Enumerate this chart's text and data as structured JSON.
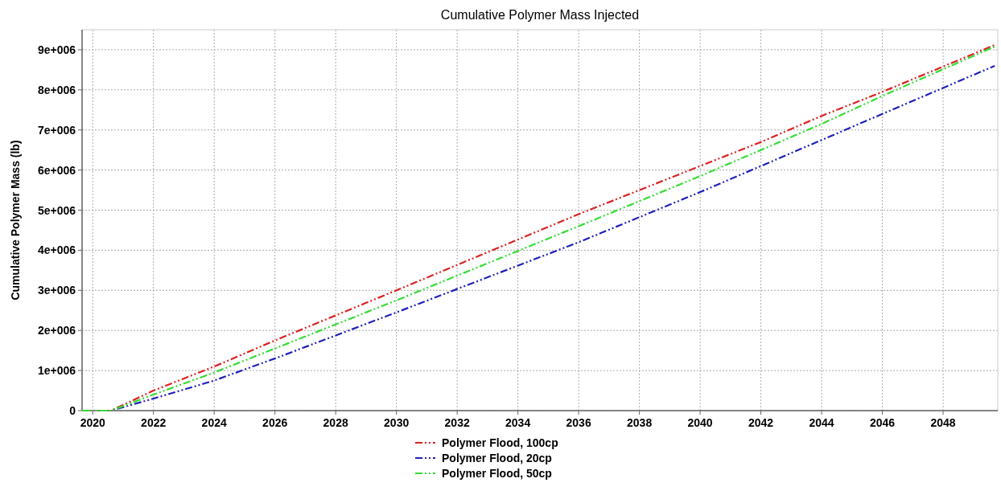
{
  "chart_data": {
    "type": "line",
    "title": "Cumulative Polymer Mass Injected",
    "ylabel": "Cumulative Polymer Mass (lb)",
    "xlim": [
      2019.65,
      2049.8
    ],
    "ylim": [
      0,
      9500000
    ],
    "xticks": [
      2020,
      2022,
      2024,
      2026,
      2028,
      2030,
      2032,
      2034,
      2036,
      2038,
      2040,
      2042,
      2044,
      2046,
      2048
    ],
    "yticks": [
      0,
      {
        "value": 1000000,
        "label": "1e+006"
      },
      {
        "value": 2000000,
        "label": "2e+006"
      },
      {
        "value": 3000000,
        "label": "3e+006"
      },
      {
        "value": 4000000,
        "label": "4e+006"
      },
      {
        "value": 5000000,
        "label": "5e+006"
      },
      {
        "value": 6000000,
        "label": "6e+006"
      },
      {
        "value": 7000000,
        "label": "7e+006"
      },
      {
        "value": 8000000,
        "label": "8e+006"
      },
      {
        "value": 9000000,
        "label": "9e+006"
      }
    ],
    "x": [
      2019.65,
      2020.6,
      2022,
      2024,
      2026,
      2030,
      2036,
      2040,
      2042,
      2044,
      2046,
      2049.7
    ],
    "grid": true,
    "legend": "bottom",
    "line_style": "dashed",
    "series": [
      {
        "name": "Polymer Flood, 100cp",
        "color": "#dd2020",
        "values": [
          0,
          0,
          500000,
          1100000,
          1750000,
          3000000,
          4900000,
          6100000,
          6700000,
          7350000,
          7950000,
          9120000
        ]
      },
      {
        "name": "Polymer Flood, 20cp",
        "color": "#2020bb",
        "values": [
          0,
          0,
          300000,
          750000,
          1300000,
          2450000,
          4200000,
          5450000,
          6100000,
          6750000,
          7400000,
          8600000
        ]
      },
      {
        "name": "Polymer Flood, 50cp",
        "color": "#33dd33",
        "values": [
          0,
          0,
          400000,
          950000,
          1550000,
          2750000,
          4600000,
          5850000,
          6500000,
          7150000,
          7850000,
          9080000
        ]
      }
    ]
  }
}
